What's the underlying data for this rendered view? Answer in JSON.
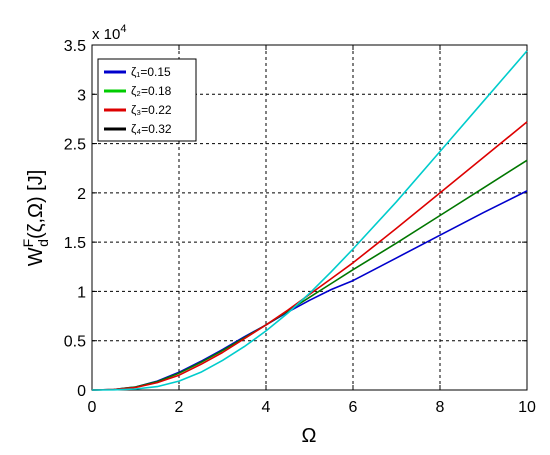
{
  "chart_data": {
    "type": "line",
    "title": "",
    "xlabel": "Ω",
    "ylabel": "W",
    "ylabel_sup": "F",
    "ylabel_sub": "d",
    "ylabel_args": "(ζ,Ω) [J]",
    "y_multiplier": "x 10",
    "y_multiplier_exp": "4",
    "xlim": [
      0,
      10
    ],
    "ylim": [
      0,
      3.5
    ],
    "xticks": [
      "0",
      "2",
      "4",
      "6",
      "8",
      "10"
    ],
    "yticks": [
      "0",
      "0.5",
      "1",
      "1.5",
      "2",
      "2.5",
      "3",
      "3.5"
    ],
    "grid": true,
    "legend_position": "top-left",
    "legend": [
      {
        "label": "ζ₁=0.15",
        "color": "#0000cc"
      },
      {
        "label": "ζ₂=0.18",
        "color": "#00cc00"
      },
      {
        "label": "ζ₃=0.22",
        "color": "#dd0000"
      },
      {
        "label": "ζ₄=0.32",
        "color": "#000000"
      }
    ],
    "series": [
      {
        "color": "#0000cc",
        "x": [
          0,
          0.5,
          1,
          1.5,
          2,
          2.5,
          3,
          3.5,
          4,
          4.5,
          5,
          5.5,
          6,
          7,
          8,
          9,
          10
        ],
        "y": [
          0,
          0.005,
          0.03,
          0.09,
          0.18,
          0.29,
          0.41,
          0.54,
          0.66,
          0.79,
          0.91,
          1.02,
          1.11,
          1.34,
          1.57,
          1.8,
          2.02
        ]
      },
      {
        "color": "#007700",
        "x": [
          0,
          0.5,
          1,
          1.5,
          2,
          2.5,
          3,
          3.5,
          4,
          4.5,
          5,
          5.5,
          6,
          7,
          8,
          9,
          10
        ],
        "y": [
          0,
          0.005,
          0.03,
          0.085,
          0.17,
          0.28,
          0.4,
          0.53,
          0.66,
          0.8,
          0.94,
          1.08,
          1.22,
          1.49,
          1.77,
          2.05,
          2.33
        ]
      },
      {
        "color": "#dd0000",
        "x": [
          0,
          0.5,
          1,
          1.5,
          2,
          2.5,
          3,
          3.5,
          4,
          4.5,
          5,
          5.5,
          6,
          7,
          8,
          9,
          10
        ],
        "y": [
          0,
          0.005,
          0.025,
          0.075,
          0.15,
          0.26,
          0.38,
          0.52,
          0.66,
          0.81,
          0.97,
          1.13,
          1.29,
          1.64,
          2.0,
          2.36,
          2.72
        ]
      },
      {
        "color": "#00cccc",
        "x": [
          0,
          0.5,
          1,
          1.5,
          2,
          2.5,
          3,
          3.5,
          4,
          4.5,
          5,
          5.5,
          6,
          7,
          8,
          9,
          10
        ],
        "y": [
          0,
          0.002,
          0.01,
          0.035,
          0.09,
          0.18,
          0.3,
          0.44,
          0.6,
          0.78,
          0.98,
          1.2,
          1.43,
          1.91,
          2.42,
          2.93,
          3.44
        ]
      }
    ]
  }
}
